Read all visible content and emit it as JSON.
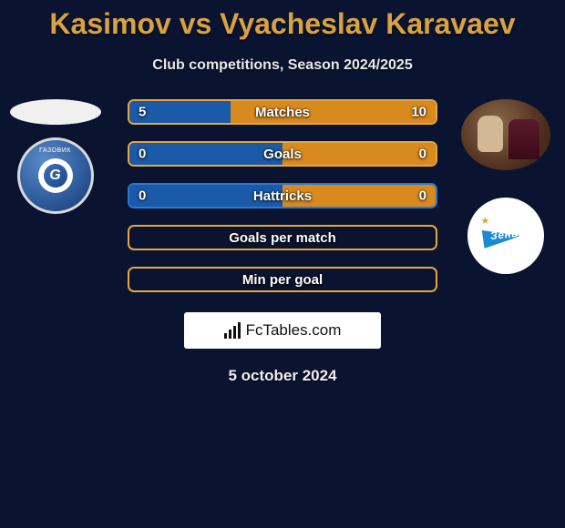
{
  "title": "Kasimov vs Vyacheslav Karavaev",
  "subtitle": "Club competitions, Season 2024/2025",
  "date": "5 october 2024",
  "watermark": "FcTables.com",
  "colors": {
    "blue_fill": "#1a5aa8",
    "blue_border": "#2a7ad4",
    "orange_fill": "#d98a1e",
    "orange_border": "#e6a642"
  },
  "left_club": {
    "badge_letter": "G"
  },
  "right_club": {
    "name": "Зенит"
  },
  "stats": [
    {
      "label": "Matches",
      "left_value": "5",
      "right_value": "10",
      "type": "split",
      "left_pct": 33,
      "right_pct": 67,
      "border_color": "#e6a642",
      "left_fill": "#1a5aa8",
      "right_fill": "#d98a1e"
    },
    {
      "label": "Goals",
      "left_value": "0",
      "right_value": "0",
      "type": "split",
      "left_pct": 50,
      "right_pct": 50,
      "border_color": "#e6a642",
      "left_fill": "#1a5aa8",
      "right_fill": "#d98a1e"
    },
    {
      "label": "Hattricks",
      "left_value": "0",
      "right_value": "0",
      "type": "split",
      "left_pct": 50,
      "right_pct": 50,
      "border_color": "#2a7ad4",
      "left_fill": "#1a5aa8",
      "right_fill": "#d98a1e"
    },
    {
      "label": "Goals per match",
      "left_value": "",
      "right_value": "",
      "type": "empty",
      "left_pct": 0,
      "right_pct": 0,
      "border_color": "#e6a642",
      "left_fill": "transparent",
      "right_fill": "transparent"
    },
    {
      "label": "Min per goal",
      "left_value": "",
      "right_value": "",
      "type": "empty",
      "left_pct": 0,
      "right_pct": 0,
      "border_color": "#e6a642",
      "left_fill": "transparent",
      "right_fill": "transparent"
    }
  ]
}
